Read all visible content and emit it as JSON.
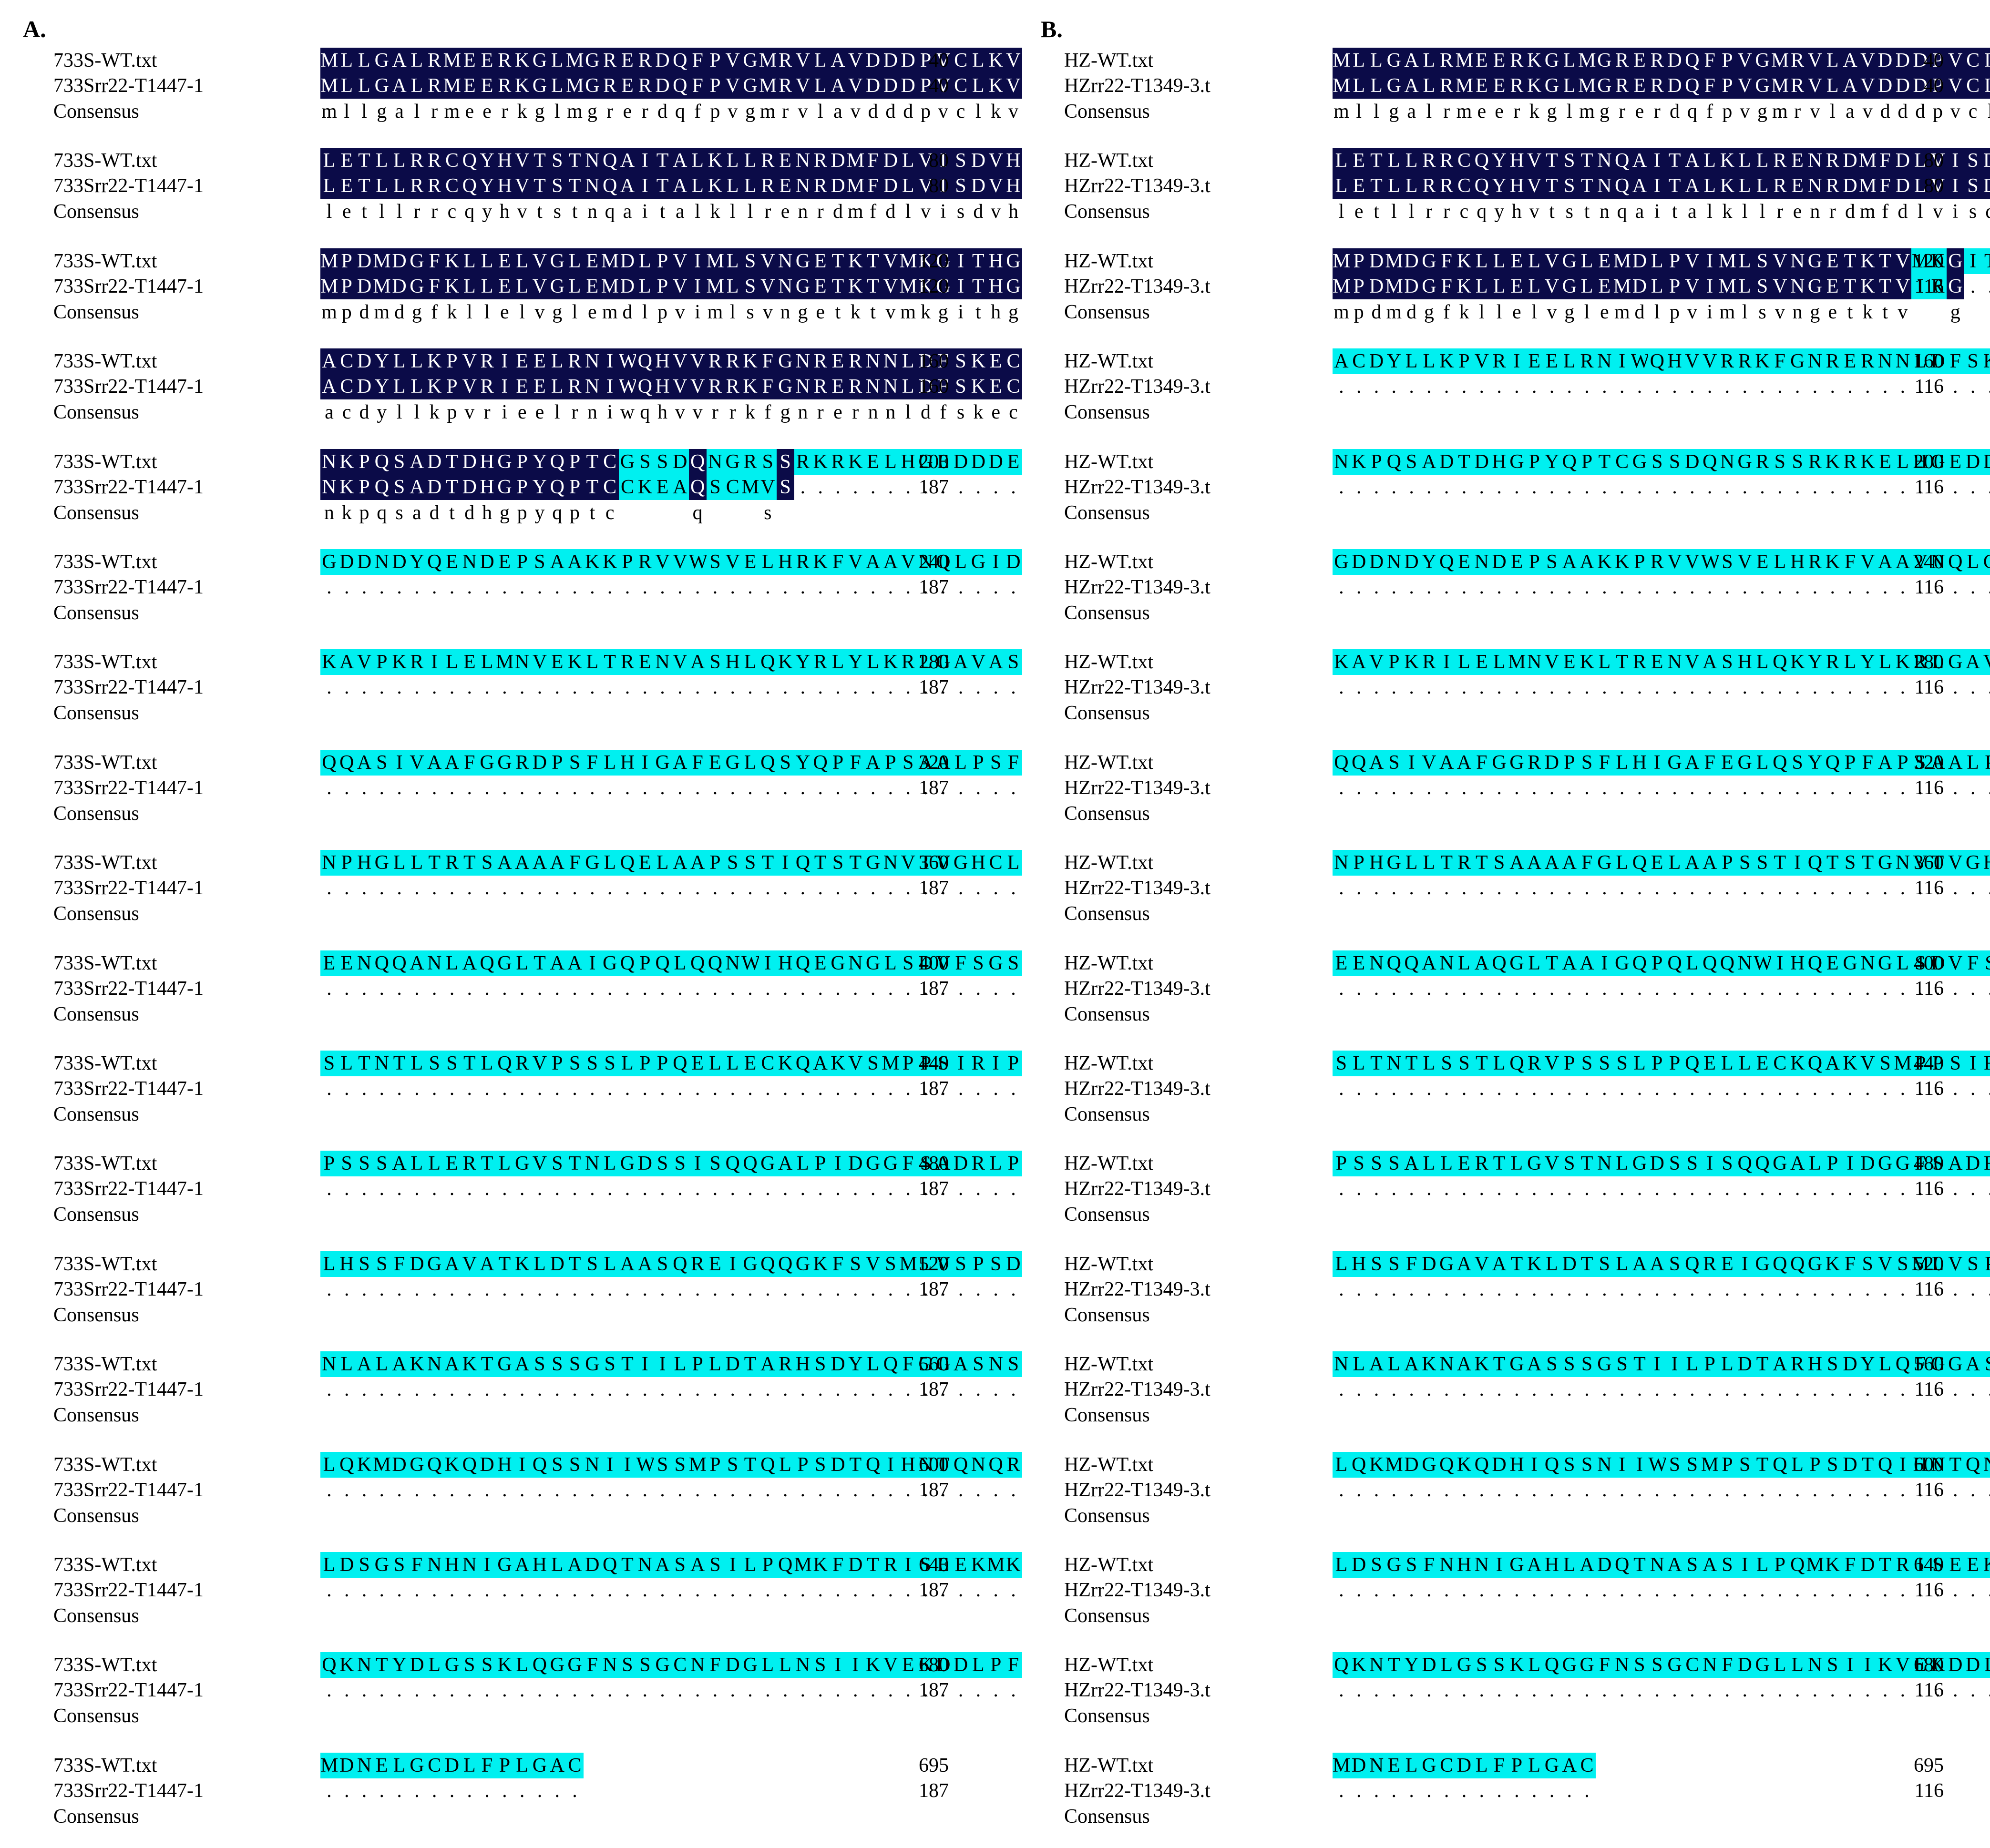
{
  "figure": {
    "colors": {
      "identical_bg": "#0b0b48",
      "nonmatch_bg": "#00f0f0",
      "identical_fg": "#ffffff"
    },
    "panels": [
      {
        "label": "A.",
        "seq1_name": "733S-WT.txt",
        "seq2_name": "733Srr22-T1447-1",
        "cons_name": "Consensus",
        "blocks": [
          {
            "s1": "MLLGALRMEERKGLMGRERDQFPVGMRVLAVDDDPVCLKV",
            "s2": "MLLGALRMEERKGLMGRERDQFPVGMRVLAVDDDPVCLKV",
            "cons": "mllgalrmeerkglmgrerdqfpvgmrvlavdddpvclkv",
            "n1": "40",
            "n2": "40"
          },
          {
            "s1": "LETLLRRCQYHVTSTNQAITALKLLRENRDMFDLVISDVH",
            "s2": "LETLLRRCQYHVTSTNQAITALKLLRENRDMFDLVISDVH",
            "cons": "letllrrcqyhvtstnqaitalkllrenrdmfdlvisdvh",
            "n1": "80",
            "n2": "80"
          },
          {
            "s1": "MPDMDGFKLLELVGLEMDLPVIMLSVNGETKTVMKGITHG",
            "s2": "MPDMDGFKLLELVGLEMDLPVIMLSVNGETKTVMKGITHG",
            "cons": "mpdmdgfkllelvglemdlpvimlsvngetktvmkgithg",
            "n1": "120",
            "n2": "120"
          },
          {
            "s1": "ACDYLLKPVRIEELRNIWQHVVRRKFGNRERNNLDFSKEC",
            "s2": "ACDYLLKPVRIEELRNIWQHVVRRKFGNRERNNLDFSKEC",
            "cons": "acdyllkpvrieelrniwqhvvrrkfgnrernnldfskec",
            "n1": "160",
            "n2": "160"
          },
          {
            "s1": "NKPQSADTDHGPYQPTCGSSDQNGRSSRKRKELHGEDDDE",
            "s2": "NKPQSADTDHGPYQPTCCKEAQSCMVS.............",
            "cons": "nkpqsadtdhgpyqptc    q   s              ",
            "n1": "200",
            "n2": "187"
          },
          {
            "s1": "GDDNDYQENDEPSAAKKPRVVWSVELHRKFVAAVNQLGID",
            "s2": "........................................",
            "cons": "",
            "n1": "240",
            "n2": "187"
          },
          {
            "s1": "KAVPKRILELMNVEKLTRENVASHLQKYRLYLKRLGAVAS",
            "s2": "........................................",
            "cons": "",
            "n1": "280",
            "n2": "187"
          },
          {
            "s1": "QQASIVAAFGGRDPSFLHIGAFEGLQSYQPFAPSAALPSF",
            "s2": "........................................",
            "cons": "",
            "n1": "320",
            "n2": "187"
          },
          {
            "s1": "NPHGLLTRTSAAAAFGLQELAAPSSTIQTSTGNVTVGHCL",
            "s2": "........................................",
            "cons": "",
            "n1": "360",
            "n2": "187"
          },
          {
            "s1": "EENQQANLAQGLTAAIGQPQLQQNWIHQEGNGLSDVFSGS",
            "s2": "........................................",
            "cons": "",
            "n1": "400",
            "n2": "187"
          },
          {
            "s1": "SLTNTLSSTLQRVPSSSLPPQELLECKQAKVSMPPSIRIP",
            "s2": "........................................",
            "cons": "",
            "n1": "440",
            "n2": "187"
          },
          {
            "s1": "PSSSALLERTLGVSTNLGDSSISQQGALPIDGGFSADRLP",
            "s2": "........................................",
            "cons": "",
            "n1": "480",
            "n2": "187"
          },
          {
            "s1": "LHSSFDGAVATKLDTSLAASQREIGQQGKFSVSMLVSPSD",
            "s2": "........................................",
            "cons": "",
            "n1": "520",
            "n2": "187"
          },
          {
            "s1": "NLALAKNAKTGASSSGSTIILPLDTARHSDYLQFGGASNS",
            "s2": "........................................",
            "cons": "",
            "n1": "560",
            "n2": "187"
          },
          {
            "s1": "LQKMDGQKQDHIQSSNIIWSSMPSTQLPSDTQIHNTQNQR",
            "s2": "........................................",
            "cons": "",
            "n1": "600",
            "n2": "187"
          },
          {
            "s1": "LDSGSFNHNIGAHLADQTNASASILPQMKFDTRISEEKMK",
            "s2": "........................................",
            "cons": "",
            "n1": "640",
            "n2": "187"
          },
          {
            "s1": "QKNTYDLGSSKLQGGFNSSGCNFDGLLNSIIKVEKDDLPF",
            "s2": "........................................",
            "cons": "",
            "n1": "680",
            "n2": "187"
          },
          {
            "s1": "MDNELGCDLFPLGAC",
            "s2": "...............",
            "cons": "",
            "n1": "695",
            "n2": "187"
          }
        ]
      },
      {
        "label": "B.",
        "seq1_name": "HZ-WT.txt",
        "seq2_name": "HZrr22-T1349-3.t",
        "cons_name": "Consensus",
        "blocks": [
          {
            "s1": "MLLGALRMEERKGLMGRERDQFPVGMRVLAVDDDPVCLKV",
            "s2": "MLLGALRMEERKGLMGRERDQFPVGMRVLAVDDDPVCLKV",
            "cons": "mllgalrmeerkglmgrerdqfpvgmrvlavdddpvclkv",
            "n1": "40",
            "n2": "40"
          },
          {
            "s1": "LETLLRRCQYHVTSTNQAITALKLLRENRDMFDLVISDVH",
            "s2": "LETLLRRCQYHVTSTNQAITALKLLRENRDMFDLVISDVH",
            "cons": "letllrrcqyhvtstnqaitalkllrenrdmfdlvisdvh",
            "n1": "80",
            "n2": "80"
          },
          {
            "s1": "MPDMDGFKLLELVGLEMDLPVIMLSVNGETKTVMKGITHG",
            "s2": "MPDMDGFKLLELVGLEMDLPVIMLSVNGETKTVIRG....",
            "cons": "mpdmdgfkllelvglemdlpvimlsvngetktv  g    ",
            "n1": "120",
            "n2": "116"
          },
          {
            "s1": "ACDYLLKPVRIEELRNIWQHVVRRKFGNRERNNLDFSKEC",
            "s2": "........................................",
            "cons": "",
            "n1": "160",
            "n2": "116"
          },
          {
            "s1": "NKPQSADTDHGPYQPTCGSSDQNGRSSRKRKELHGEDDDE",
            "s2": "........................................",
            "cons": "",
            "n1": "200",
            "n2": "116"
          },
          {
            "s1": "GDDNDYQENDEPSAAKKPRVVWSVELHRKFVAAVNQLGID",
            "s2": "........................................",
            "cons": "",
            "n1": "240",
            "n2": "116"
          },
          {
            "s1": "KAVPKRILELMNVEKLTRENVASHLQKYRLYLKRLGAVAS",
            "s2": "........................................",
            "cons": "",
            "n1": "280",
            "n2": "116"
          },
          {
            "s1": "QQASIVAAFGGRDPSFLHIGAFEGLQSYQPFAPSAALPSF",
            "s2": "........................................",
            "cons": "",
            "n1": "320",
            "n2": "116"
          },
          {
            "s1": "NPHGLLTRTSAAAAFGLQELAAPSSTIQTSTGNVTVGHCL",
            "s2": "........................................",
            "cons": "",
            "n1": "360",
            "n2": "116"
          },
          {
            "s1": "EENQQANLAQGLTAAIGQPQLQQNWIHQEGNGLSDVFSGS",
            "s2": "........................................",
            "cons": "",
            "n1": "400",
            "n2": "116"
          },
          {
            "s1": "SLTNTLSSTLQRVPSSSLPPQELLECKQAKVSMPPSIRIP",
            "s2": "........................................",
            "cons": "",
            "n1": "440",
            "n2": "116"
          },
          {
            "s1": "PSSSALLERTLGVSTNLGDSSISQQGALPIDGGFSADRLP",
            "s2": "........................................",
            "cons": "",
            "n1": "480",
            "n2": "116"
          },
          {
            "s1": "LHSSFDGAVATKLDTSLAASQREIGQQGKFSVSMLVSPSD",
            "s2": "........................................",
            "cons": "",
            "n1": "520",
            "n2": "116"
          },
          {
            "s1": "NLALAKNAKTGASSSGSTIILPLDTARHSDYLQFGGASNS",
            "s2": "........................................",
            "cons": "",
            "n1": "560",
            "n2": "116"
          },
          {
            "s1": "LQKMDGQKQDHIQSSNIIWSSMPSTQLPSDTQIHNTQNQR",
            "s2": "........................................",
            "cons": "",
            "n1": "600",
            "n2": "116"
          },
          {
            "s1": "LDSGSFNHNIGAHLADQTNASASILPQMKFDTRISEEKMK",
            "s2": "........................................",
            "cons": "",
            "n1": "640",
            "n2": "116"
          },
          {
            "s1": "QKNTYDLGSSKLQGGFNSSGCNFDGLLNSIIKVEKDDLPF",
            "s2": "........................................",
            "cons": "",
            "n1": "680",
            "n2": "116"
          },
          {
            "s1": "MDNELGCDLFPLGAC",
            "s2": "...............",
            "cons": "",
            "n1": "695",
            "n2": "116"
          }
        ]
      }
    ]
  }
}
